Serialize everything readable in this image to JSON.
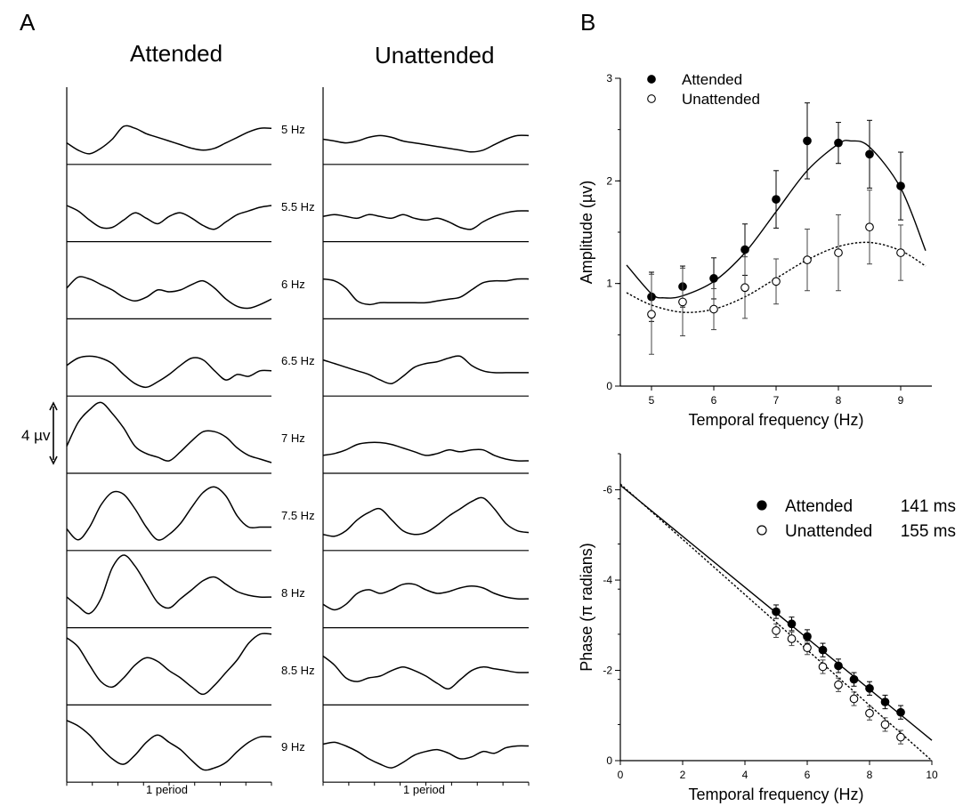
{
  "panels": {
    "a": {
      "letter": "A",
      "attended_title": "Attended",
      "unattended_title": "Unattended",
      "scale_label": "4 µv",
      "period_label": "1 period",
      "frequencies": [
        "5 Hz",
        "5.5 Hz",
        "6 Hz",
        "6.5 Hz",
        "7 Hz",
        "7.5 Hz",
        "8 Hz",
        "8.5 Hz",
        "9 Hz"
      ]
    },
    "b": {
      "letter": "B"
    }
  },
  "chart_data": [
    {
      "type": "line",
      "panel": "A",
      "title": "",
      "note": "Waveform traces over 1 period; y in µV relative to trace baseline",
      "x": [
        0,
        0.0556,
        0.1111,
        0.1667,
        0.2222,
        0.2778,
        0.3333,
        0.3889,
        0.4444,
        0.5,
        0.5556,
        0.6111,
        0.6667,
        0.7222,
        0.7778,
        0.8333,
        0.8889,
        0.9444,
        1
      ],
      "series": [
        {
          "group": "Attended",
          "freq": "5 Hz",
          "values": [
            0.5,
            0.1,
            -0.1,
            0.2,
            0.7,
            1.4,
            1.3,
            1.0,
            0.8,
            0.6,
            0.4,
            0.2,
            0.1,
            0.2,
            0.5,
            0.8,
            1.1,
            1.3,
            1.3
          ]
        },
        {
          "group": "Attended",
          "freq": "5.5 Hz",
          "values": [
            1.3,
            1.0,
            0.5,
            0.1,
            0.1,
            0.5,
            0.9,
            0.6,
            0.3,
            0.7,
            0.9,
            0.6,
            0.2,
            0.0,
            0.4,
            0.8,
            1.0,
            1.2,
            1.3
          ]
        },
        {
          "group": "Attended",
          "freq": "6 Hz",
          "values": [
            1.0,
            1.6,
            1.5,
            1.2,
            0.9,
            0.5,
            0.3,
            0.5,
            0.9,
            0.8,
            0.9,
            1.2,
            1.4,
            1.0,
            0.4,
            0.0,
            -0.1,
            0.1,
            0.4
          ]
        },
        {
          "group": "Attended",
          "freq": "6.5 Hz",
          "values": [
            1.0,
            1.4,
            1.5,
            1.4,
            1.1,
            0.5,
            0.0,
            -0.2,
            0.1,
            0.5,
            1.0,
            1.4,
            1.3,
            0.7,
            0.2,
            0.5,
            0.4,
            0.7,
            0.7
          ]
        },
        {
          "group": "Attended",
          "freq": "7 Hz",
          "values": [
            0.8,
            2.1,
            2.8,
            3.2,
            2.6,
            1.8,
            0.8,
            0.4,
            0.2,
            0.0,
            0.5,
            1.1,
            1.6,
            1.6,
            1.3,
            0.7,
            0.3,
            0.1,
            -0.1
          ]
        },
        {
          "group": "Attended",
          "freq": "7.5 Hz",
          "values": [
            0.5,
            -0.1,
            0.6,
            1.8,
            2.5,
            2.4,
            1.6,
            0.6,
            -0.1,
            0.2,
            0.8,
            1.7,
            2.5,
            2.8,
            2.3,
            1.2,
            0.6,
            0.6,
            0.6
          ]
        },
        {
          "group": "Attended",
          "freq": "8 Hz",
          "values": [
            1.0,
            0.5,
            0.1,
            0.9,
            2.6,
            3.3,
            2.7,
            1.7,
            0.7,
            0.4,
            0.9,
            1.4,
            1.9,
            2.1,
            1.7,
            1.3,
            1.1,
            1.0,
            1.0
          ]
        },
        {
          "group": "Attended",
          "freq": "8.5 Hz",
          "values": [
            3.0,
            2.5,
            1.5,
            0.6,
            0.3,
            0.8,
            1.5,
            1.9,
            1.7,
            1.2,
            0.8,
            0.3,
            -0.1,
            0.4,
            1.1,
            1.8,
            2.7,
            3.2,
            3.2
          ]
        },
        {
          "group": "Attended",
          "freq": "9 Hz",
          "values": [
            2.7,
            2.4,
            1.9,
            1.2,
            0.6,
            0.3,
            0.8,
            1.5,
            1.9,
            1.5,
            1.1,
            0.5,
            0.0,
            0.1,
            0.4,
            1.0,
            1.5,
            1.8,
            1.8
          ]
        },
        {
          "group": "Unattended",
          "freq": "5 Hz",
          "values": [
            0.7,
            0.6,
            0.5,
            0.6,
            0.8,
            0.9,
            0.8,
            0.6,
            0.5,
            0.4,
            0.3,
            0.2,
            0.1,
            0.0,
            0.1,
            0.4,
            0.7,
            0.9,
            0.9
          ]
        },
        {
          "group": "Unattended",
          "freq": "5.5 Hz",
          "values": [
            0.7,
            0.8,
            0.7,
            0.6,
            0.8,
            0.7,
            0.6,
            0.8,
            0.6,
            0.5,
            0.6,
            0.4,
            0.1,
            0.0,
            0.4,
            0.7,
            0.9,
            1.0,
            1.0
          ]
        },
        {
          "group": "Unattended",
          "freq": "6 Hz",
          "values": [
            1.5,
            1.4,
            1.0,
            0.3,
            0.1,
            0.2,
            0.2,
            0.2,
            0.2,
            0.2,
            0.3,
            0.4,
            0.5,
            0.9,
            1.3,
            1.4,
            1.4,
            1.5,
            1.5
          ]
        },
        {
          "group": "Unattended",
          "freq": "6.5 Hz",
          "values": [
            1.3,
            1.1,
            0.9,
            0.7,
            0.5,
            0.2,
            0.0,
            0.4,
            0.9,
            1.1,
            1.2,
            1.4,
            1.5,
            1.0,
            0.7,
            0.6,
            0.6,
            0.6,
            0.6
          ]
        },
        {
          "group": "Unattended",
          "freq": "7 Hz",
          "values": [
            0.3,
            0.4,
            0.6,
            0.9,
            1.0,
            1.0,
            0.9,
            0.7,
            0.5,
            0.3,
            0.4,
            0.6,
            0.5,
            0.6,
            0.6,
            0.3,
            0.1,
            0.0,
            0.0
          ]
        },
        {
          "group": "Unattended",
          "freq": "7.5 Hz",
          "values": [
            0.2,
            0.1,
            0.4,
            1.0,
            1.4,
            1.6,
            1.0,
            0.4,
            0.2,
            0.3,
            0.7,
            1.2,
            1.6,
            2.0,
            2.2,
            1.6,
            0.8,
            0.4,
            0.3
          ]
        },
        {
          "group": "Unattended",
          "freq": "8 Hz",
          "values": [
            0.6,
            0.3,
            0.6,
            1.2,
            1.4,
            1.2,
            1.4,
            1.7,
            1.7,
            1.4,
            1.2,
            1.3,
            1.5,
            1.6,
            1.5,
            1.2,
            1.0,
            0.9,
            0.9
          ]
        },
        {
          "group": "Unattended",
          "freq": "8.5 Hz",
          "values": [
            2.0,
            1.5,
            0.8,
            0.6,
            0.8,
            0.9,
            1.2,
            1.4,
            1.2,
            0.9,
            0.5,
            0.2,
            0.7,
            1.2,
            1.4,
            1.3,
            1.2,
            1.1,
            1.1
          ]
        },
        {
          "group": "Unattended",
          "freq": "9 Hz",
          "values": [
            1.4,
            1.5,
            1.3,
            1.0,
            0.6,
            0.3,
            0.1,
            0.4,
            0.8,
            1.0,
            1.1,
            0.9,
            0.6,
            0.7,
            1.0,
            0.9,
            1.2,
            1.3,
            1.3
          ]
        }
      ]
    },
    {
      "type": "scatter",
      "panel": "B-top",
      "title": "",
      "xlabel": "Temporal frequency (Hz)",
      "ylabel": "Amplitude (µv)",
      "xlim": [
        4.5,
        9.5
      ],
      "ylim": [
        0,
        3
      ],
      "xticks": [
        5,
        6,
        7,
        8,
        9
      ],
      "yticks": [
        0,
        1,
        2,
        3
      ],
      "legend_position": "top-left",
      "series": [
        {
          "name": "Attended",
          "marker": "filled-circle",
          "x": [
            5,
            5.5,
            6,
            6.5,
            7,
            7.5,
            8,
            8.5,
            9
          ],
          "y": [
            0.87,
            0.97,
            1.05,
            1.33,
            1.82,
            2.39,
            2.37,
            2.26,
            1.95
          ],
          "err": [
            0.24,
            0.2,
            0.2,
            0.25,
            0.28,
            0.37,
            0.2,
            0.33,
            0.33
          ],
          "fit": {
            "x": [
              4.6,
              5.0,
              5.2,
              5.5,
              6.0,
              6.5,
              7.0,
              7.5,
              8.0,
              8.2,
              8.5,
              9.0,
              9.4
            ],
            "y": [
              1.18,
              0.9,
              0.86,
              0.88,
              1.02,
              1.3,
              1.7,
              2.1,
              2.36,
              2.39,
              2.33,
              1.93,
              1.32
            ]
          }
        },
        {
          "name": "Unattended",
          "marker": "open-circle",
          "x": [
            5,
            5.5,
            6,
            6.5,
            7,
            7.5,
            8,
            8.5,
            9
          ],
          "y": [
            0.7,
            0.82,
            0.75,
            0.96,
            1.02,
            1.23,
            1.3,
            1.55,
            1.3
          ],
          "err": [
            0.39,
            0.33,
            0.2,
            0.3,
            0.22,
            0.3,
            0.37,
            0.36,
            0.27
          ],
          "fit": {
            "x": [
              4.6,
              5.0,
              5.5,
              6.0,
              6.5,
              7.0,
              7.5,
              8.0,
              8.5,
              9.0,
              9.4
            ],
            "y": [
              0.91,
              0.79,
              0.72,
              0.75,
              0.87,
              1.05,
              1.23,
              1.36,
              1.4,
              1.32,
              1.17
            ]
          }
        }
      ]
    },
    {
      "type": "scatter",
      "panel": "B-bottom",
      "title": "",
      "xlabel": "Temporal frequency (Hz)",
      "ylabel": "Phase (π radians)",
      "xlim": [
        0,
        10
      ],
      "ylim": [
        0,
        -6.8
      ],
      "xticks": [
        0,
        2,
        4,
        6,
        8,
        10
      ],
      "yticks": [
        0,
        -2,
        -4,
        -6
      ],
      "legend_position": "top-right",
      "series": [
        {
          "name": "Attended",
          "latency": "141 ms",
          "marker": "filled-circle",
          "x": [
            5,
            5.5,
            6,
            6.5,
            7,
            7.5,
            8,
            8.5,
            9
          ],
          "y": [
            -3.3,
            -3.03,
            -2.75,
            -2.45,
            -2.1,
            -1.8,
            -1.6,
            -1.3,
            -1.07
          ],
          "err": [
            0.15,
            0.15,
            0.15,
            0.15,
            0.15,
            0.15,
            0.15,
            0.15,
            0.15
          ],
          "fit": {
            "x": [
              0,
              10
            ],
            "y": [
              -6.1,
              -0.45
            ]
          }
        },
        {
          "name": "Unattended",
          "latency": "155 ms",
          "marker": "open-circle",
          "x": [
            5,
            5.5,
            6,
            6.5,
            7,
            7.5,
            8,
            8.5,
            9
          ],
          "y": [
            -2.88,
            -2.7,
            -2.5,
            -2.08,
            -1.68,
            -1.37,
            -1.05,
            -0.8,
            -0.52
          ],
          "err": [
            0.15,
            0.15,
            0.15,
            0.15,
            0.15,
            0.15,
            0.15,
            0.15,
            0.15
          ],
          "fit": {
            "x": [
              0,
              10
            ],
            "y": [
              -6.13,
              0.0
            ]
          }
        }
      ]
    }
  ]
}
